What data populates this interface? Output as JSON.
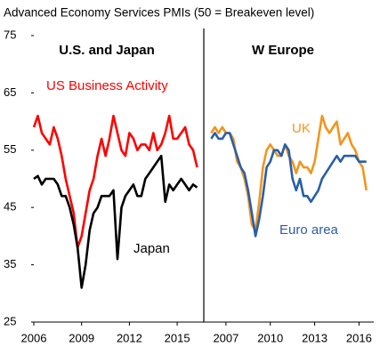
{
  "title": "Advanced Economy Services PMIs (50 = Breakeven level)",
  "chart_data": [
    {
      "type": "line",
      "title": "U.S. and Japan",
      "x": [
        2006,
        2006.25,
        2006.5,
        2006.75,
        2007,
        2007.25,
        2007.5,
        2007.75,
        2008,
        2008.25,
        2008.5,
        2008.75,
        2009,
        2009.25,
        2009.5,
        2009.75,
        2010,
        2010.25,
        2010.5,
        2010.75,
        2011,
        2011.25,
        2011.5,
        2011.75,
        2012,
        2012.25,
        2012.5,
        2012.75,
        2013,
        2013.25,
        2013.5,
        2013.75,
        2014,
        2014.25,
        2014.5,
        2014.75,
        2015,
        2015.25,
        2015.5,
        2015.75,
        2016,
        2016.25
      ],
      "series": [
        {
          "name": "US Business Activity",
          "color": "#ff0000",
          "values": [
            59,
            61,
            58,
            57,
            56,
            59,
            57,
            54,
            50,
            47,
            44,
            38,
            40,
            44,
            48,
            50,
            54,
            57,
            54,
            57,
            61,
            58,
            55,
            54,
            58,
            57,
            55,
            56,
            56,
            55,
            58,
            55,
            56,
            58,
            61,
            57,
            57,
            58,
            59,
            56,
            55,
            52
          ]
        },
        {
          "name": "Japan",
          "color": "#000000",
          "values": [
            50,
            50.5,
            49,
            50,
            50,
            50,
            49,
            47,
            47,
            45,
            42,
            38,
            31,
            35,
            41,
            44,
            45,
            47,
            47,
            47,
            48,
            36,
            45,
            47,
            48,
            49,
            47,
            47,
            50,
            51,
            52,
            53,
            54,
            46,
            49,
            48,
            49,
            50,
            49,
            48,
            49,
            48.5
          ]
        }
      ],
      "xlim": [
        2006,
        2016.67
      ],
      "xticks": [
        2006,
        2009,
        2012,
        2015
      ],
      "ylim": [
        25,
        75
      ],
      "yticks": [
        25,
        35,
        45,
        55,
        65,
        75
      ]
    },
    {
      "type": "line",
      "title": "W Europe",
      "x": [
        2006,
        2006.25,
        2006.5,
        2006.75,
        2007,
        2007.25,
        2007.5,
        2007.75,
        2008,
        2008.25,
        2008.5,
        2008.75,
        2009,
        2009.25,
        2009.5,
        2009.75,
        2010,
        2010.25,
        2010.5,
        2010.75,
        2011,
        2011.25,
        2011.5,
        2011.75,
        2012,
        2012.25,
        2012.5,
        2012.75,
        2013,
        2013.25,
        2013.5,
        2013.75,
        2014,
        2014.25,
        2014.5,
        2014.75,
        2015,
        2015.25,
        2015.5,
        2015.75,
        2016,
        2016.25,
        2016.5
      ],
      "series": [
        {
          "name": "UK",
          "color": "#f0961e",
          "values": [
            58,
            59,
            58,
            59,
            58,
            58,
            57,
            53,
            52,
            50,
            47,
            42,
            41,
            46,
            52,
            55,
            56,
            55,
            54,
            54,
            56,
            54,
            53,
            51,
            53,
            52,
            52,
            51,
            53,
            57,
            61,
            59,
            58,
            59,
            60,
            56,
            57,
            58,
            56,
            55,
            53,
            52,
            48
          ]
        },
        {
          "name": "Euro area",
          "color": "#2a5ea8",
          "values": [
            57,
            58,
            57,
            57,
            58,
            58,
            56,
            54,
            52,
            51,
            48,
            44,
            40,
            43,
            47,
            52,
            53,
            55,
            55,
            54,
            56,
            55,
            50,
            48,
            50,
            47,
            47,
            46,
            47,
            48,
            50,
            51,
            52,
            53,
            54,
            53,
            54,
            54,
            54,
            54,
            53,
            53,
            53
          ]
        }
      ],
      "xlim": [
        2005.5,
        2017
      ],
      "xticks": [
        2007,
        2010,
        2013,
        2016
      ],
      "ylim": [
        25,
        75
      ]
    }
  ]
}
